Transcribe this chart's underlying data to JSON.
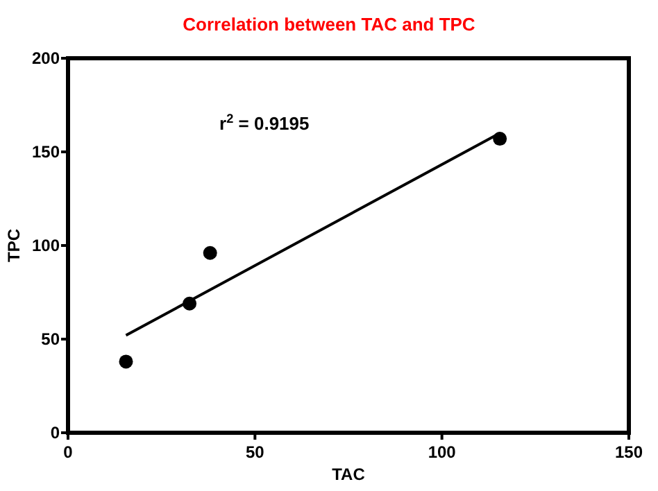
{
  "chart_data": {
    "type": "scatter",
    "title": "Correlation between TAC and TPC",
    "xlabel": "TAC",
    "ylabel": "TPC",
    "xlim": [
      0,
      150
    ],
    "xticks": [
      0,
      50,
      100,
      150
    ],
    "ylim": [
      0,
      200
    ],
    "yticks": [
      0,
      50,
      100,
      150,
      200
    ],
    "grid": false,
    "marker": "circle",
    "annotations": [
      "r$^{2}$ = 0.9195"
    ],
    "series": [
      {
        "color": "#000000",
        "x": [
          15.5,
          32.5,
          38,
          115.5
        ],
        "values": [
          38,
          69,
          96,
          157
        ]
      },
      {
        "type": "line",
        "color": "#000000",
        "line_style": "solid",
        "marker": "none",
        "x": [
          15.5,
          115.5
        ],
        "values": [
          52,
          160
        ]
      }
    ]
  }
}
